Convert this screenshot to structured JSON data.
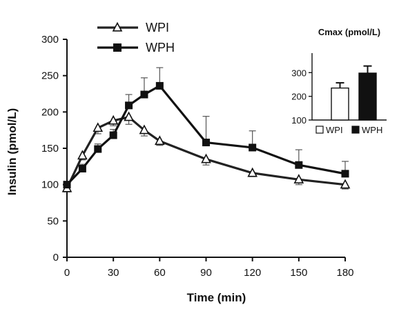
{
  "chart_data": [
    {
      "type": "line",
      "xlabel": "Time (min)",
      "ylabel": "Insulin (pmol/L)",
      "xlim": [
        0,
        180
      ],
      "ylim": [
        0,
        300
      ],
      "xticks": [
        "0",
        "30",
        "60",
        "90",
        "120",
        "150",
        "180"
      ],
      "yticks": [
        "0",
        "50",
        "100",
        "150",
        "200",
        "250",
        "300"
      ],
      "grid": false,
      "legend": "top-left",
      "series": [
        {
          "name": "WPI",
          "marker": "open-triangle",
          "color": "#222222",
          "x": [
            0,
            10,
            20,
            30,
            40,
            50,
            60,
            90,
            120,
            150,
            180
          ],
          "y": [
            95,
            140,
            178,
            188,
            193,
            175,
            160,
            135,
            116,
            107,
            100
          ],
          "error": [
            5,
            6,
            8,
            7,
            10,
            8,
            6,
            8,
            5,
            7,
            6
          ]
        },
        {
          "name": "WPH",
          "marker": "filled-square",
          "color": "#111111",
          "x": [
            0,
            10,
            20,
            30,
            40,
            50,
            60,
            90,
            120,
            150,
            180
          ],
          "y": [
            100,
            122,
            149,
            168,
            209,
            224,
            236,
            158,
            151,
            127,
            115
          ],
          "error": [
            3,
            6,
            7,
            8,
            15,
            23,
            25,
            36,
            23,
            21,
            17
          ]
        }
      ]
    },
    {
      "type": "bar",
      "title": "Cmax (pmol/L)",
      "categories": [
        "WPI",
        "WPH"
      ],
      "values": [
        235,
        298
      ],
      "error": [
        22,
        30
      ],
      "fills": [
        "#ffffff",
        "#111111"
      ],
      "ylim": [
        100,
        330
      ],
      "yticks": [
        "100",
        "200",
        "300"
      ],
      "legend": "bottom"
    }
  ]
}
